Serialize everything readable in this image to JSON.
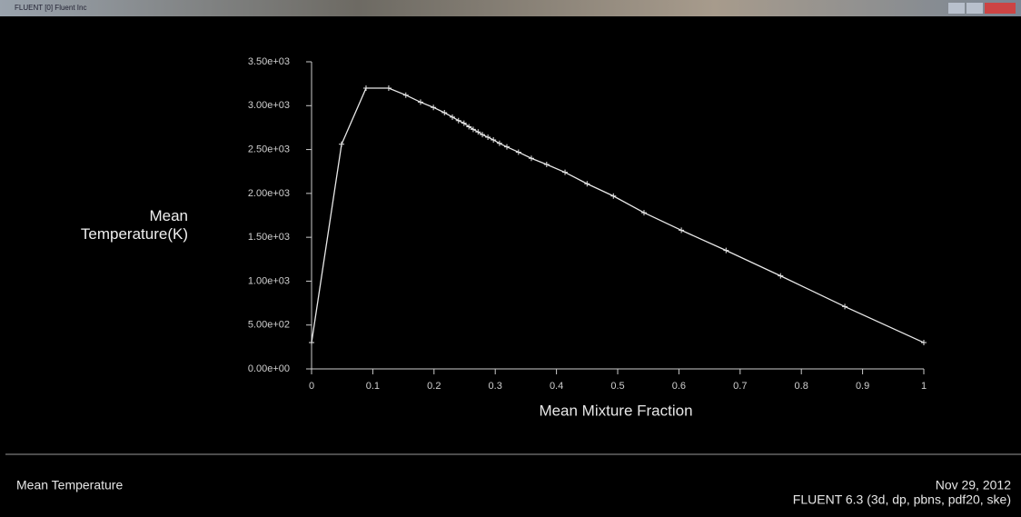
{
  "window_title": "FLUENT [0] Fluent Inc",
  "chart_data": {
    "type": "line",
    "x_label": "Mean Mixture Fraction",
    "y_label": "Mean Temperature(K)",
    "x": [
      0,
      0.049,
      0.089,
      0.126,
      0.154,
      0.178,
      0.199,
      0.217,
      0.23,
      0.24,
      0.249,
      0.257,
      0.264,
      0.272,
      0.279,
      0.288,
      0.297,
      0.307,
      0.319,
      0.338,
      0.359,
      0.384,
      0.414,
      0.45,
      0.493,
      0.543,
      0.604,
      0.677,
      0.766,
      0.871,
      1
    ],
    "series": [
      {
        "color": "#e8e8e8",
        "values": [
          300,
          2560,
          3200,
          3200,
          3120,
          3040,
          2980,
          2920,
          2870,
          2830,
          2800,
          2760,
          2730,
          2700,
          2670,
          2640,
          2610,
          2570,
          2530,
          2470,
          2400,
          2330,
          2240,
          2110,
          1970,
          1780,
          1580,
          1350,
          1060,
          710,
          300
        ]
      }
    ],
    "xlim": [
      0,
      1
    ],
    "xticks": [
      0,
      0.1,
      0.2,
      0.3,
      0.4,
      0.5,
      0.6,
      0.7,
      0.8,
      0.9,
      1
    ],
    "ylim": [
      0,
      3500
    ],
    "yticks": [
      {
        "value": 0,
        "label": "0.00e+00"
      },
      {
        "value": 500,
        "label": "5.00e+02"
      },
      {
        "value": 1000,
        "label": "1.00e+03"
      },
      {
        "value": 1500,
        "label": "1.50e+03"
      },
      {
        "value": 2000,
        "label": "2.00e+03"
      },
      {
        "value": 2500,
        "label": "2.50e+03"
      },
      {
        "value": 3000,
        "label": "3.00e+03"
      },
      {
        "value": 3500,
        "label": "3.50e+03"
      }
    ],
    "grid": false
  },
  "footer": {
    "title": "Mean Temperature",
    "date": "Nov 29, 2012",
    "version": "FLUENT 6.3 (3d, dp, pbns, pdf20, ske)"
  }
}
